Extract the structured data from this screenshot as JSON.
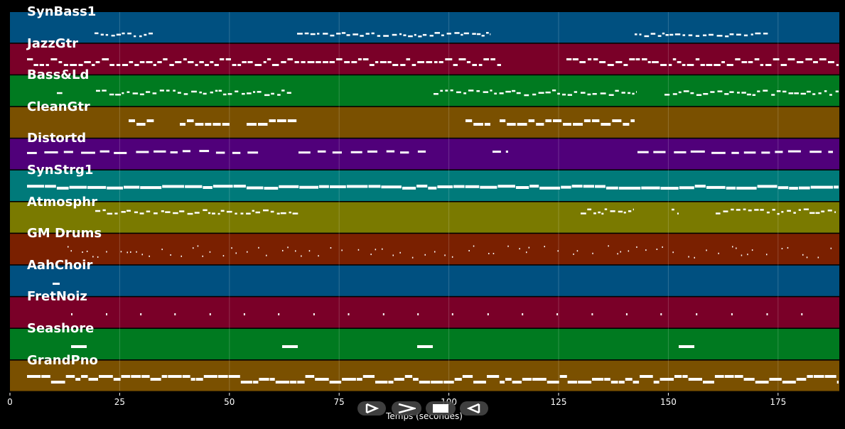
{
  "tracks": [
    {
      "name": "SynBass1",
      "color": "#005080"
    },
    {
      "name": "JazzGtr",
      "color": "#7a0028"
    },
    {
      "name": "Bass&Ld",
      "color": "#007a20"
    },
    {
      "name": "CleanGtr",
      "color": "#7a5000"
    },
    {
      "name": "Distortd",
      "color": "#50007a"
    },
    {
      "name": "SynStrg1",
      "color": "#007a7a"
    },
    {
      "name": "Atmosphr",
      "color": "#7a7a00"
    },
    {
      "name": "GM Drums",
      "color": "#7a2000"
    },
    {
      "name": "AahChoir",
      "color": "#005080"
    },
    {
      "name": "FretNoiz",
      "color": "#7a0028"
    },
    {
      "name": "Seashore",
      "color": "#007a20"
    },
    {
      "name": "GrandPno",
      "color": "#7a5000"
    }
  ],
  "axis": {
    "label": "Temps (secondes)",
    "ticks": [
      "0",
      "25",
      "50",
      "75",
      "100",
      "125",
      "150",
      "175"
    ]
  },
  "controls": [
    {
      "name": "play-outline-icon"
    },
    {
      "name": "chevron-right-icon"
    },
    {
      "name": "stop-icon"
    },
    {
      "name": "rewind-icon"
    }
  ]
}
